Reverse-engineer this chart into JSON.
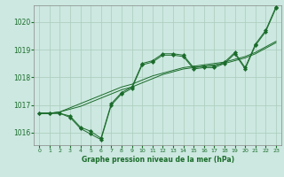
{
  "title": "Graphe pression niveau de la mer (hPa)",
  "background_color": "#cce8e0",
  "grid_color": "#aaccbb",
  "line_color": "#1a6b2a",
  "xlim": [
    -0.5,
    23.5
  ],
  "ylim": [
    1015.55,
    1020.6
  ],
  "yticks": [
    1016,
    1017,
    1018,
    1019,
    1020
  ],
  "xticks": [
    0,
    1,
    2,
    3,
    4,
    5,
    6,
    7,
    8,
    9,
    10,
    11,
    12,
    13,
    14,
    15,
    16,
    17,
    18,
    19,
    20,
    21,
    22,
    23
  ],
  "line_smooth1": [
    1016.7,
    1016.7,
    1016.75,
    1016.9,
    1017.05,
    1017.2,
    1017.35,
    1017.5,
    1017.65,
    1017.75,
    1017.9,
    1018.05,
    1018.15,
    1018.25,
    1018.35,
    1018.4,
    1018.45,
    1018.5,
    1018.55,
    1018.65,
    1018.75,
    1018.9,
    1019.1,
    1019.3
  ],
  "line_smooth2": [
    1016.7,
    1016.7,
    1016.75,
    1016.85,
    1016.95,
    1017.1,
    1017.25,
    1017.4,
    1017.55,
    1017.65,
    1017.8,
    1017.95,
    1018.1,
    1018.2,
    1018.3,
    1018.35,
    1018.4,
    1018.45,
    1018.5,
    1018.6,
    1018.7,
    1018.85,
    1019.05,
    1019.25
  ],
  "line_marked1_x": [
    0,
    1,
    2,
    3,
    4,
    5,
    6,
    7,
    8,
    9,
    10,
    11,
    12,
    13,
    14,
    15,
    16,
    17,
    18,
    19,
    20,
    21,
    22,
    23
  ],
  "line_marked1_y": [
    1016.7,
    1016.7,
    1016.7,
    1016.55,
    1016.15,
    1015.95,
    1015.75,
    1017.0,
    1017.4,
    1017.6,
    1018.45,
    1018.55,
    1018.8,
    1018.8,
    1018.75,
    1018.3,
    1018.35,
    1018.35,
    1018.5,
    1018.85,
    1018.3,
    1019.15,
    1019.65,
    1020.5
  ],
  "line_marked2_x": [
    0,
    1,
    2,
    3,
    4,
    5,
    6,
    7,
    8,
    9,
    10,
    11,
    12,
    13,
    14,
    15,
    16,
    17,
    18,
    19,
    20,
    21,
    22,
    23
  ],
  "line_marked2_y": [
    1016.7,
    1016.7,
    1016.7,
    1016.6,
    1016.2,
    1016.05,
    1015.8,
    1017.05,
    1017.45,
    1017.65,
    1018.5,
    1018.6,
    1018.85,
    1018.85,
    1018.8,
    1018.35,
    1018.4,
    1018.4,
    1018.55,
    1018.9,
    1018.35,
    1019.2,
    1019.7,
    1020.55
  ]
}
